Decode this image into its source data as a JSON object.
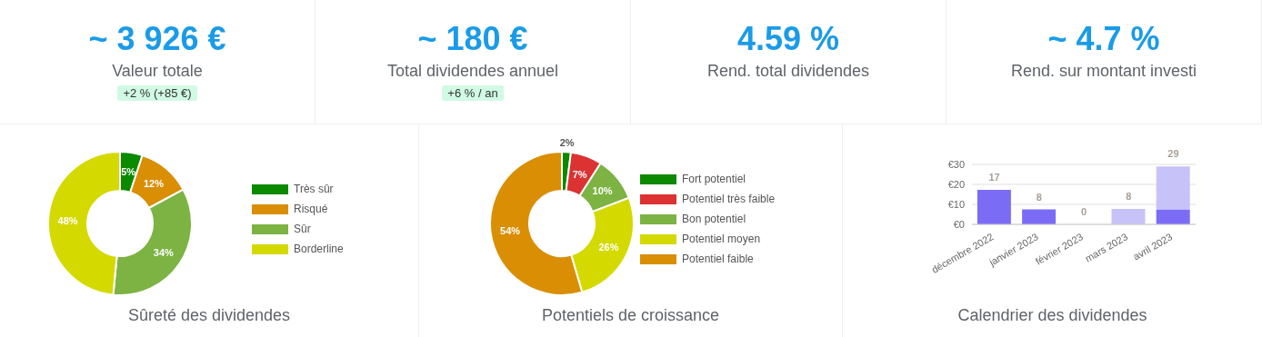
{
  "chart_data": [
    {
      "type": "other",
      "title": "~ 3 926 €",
      "subtitle": "Valeur totale",
      "annotations": [
        "+2 % (+85 €)"
      ]
    },
    {
      "type": "other",
      "title": "~ 180 €",
      "subtitle": "Total dividendes annuel",
      "annotations": [
        "+6 % / an"
      ]
    },
    {
      "type": "other",
      "title": "4.59 %",
      "subtitle": "Rend. total dividendes"
    },
    {
      "type": "other",
      "title": "~ 4.7 %",
      "subtitle": "Rend. sur montant investi"
    },
    {
      "type": "donut",
      "title": "Sûreté des dividendes",
      "categories": [
        "Très sûr",
        "Risqué",
        "Sûr",
        "Borderline"
      ],
      "values": [
        5,
        12,
        34,
        48
      ],
      "value_labels": [
        "5%",
        "12%",
        "34%",
        "48%"
      ],
      "colors": [
        "#0b8a00",
        "#d98e04",
        "#7cb342",
        "#d4d900"
      ],
      "legend": "right"
    },
    {
      "type": "donut",
      "title": "Potentiels de croissance",
      "categories": [
        "Fort potentiel",
        "Potentiel très faible",
        "Bon potentiel",
        "Potentiel moyen",
        "Potentiel faible"
      ],
      "values": [
        2,
        7,
        10,
        26,
        54
      ],
      "value_labels": [
        "2%",
        "7%",
        "10%",
        "26%",
        "54%"
      ],
      "colors": [
        "#0b8a00",
        "#dc3232",
        "#7cb342",
        "#d4d900",
        "#d98e04"
      ],
      "legend": "right"
    },
    {
      "type": "bar",
      "title": "Calendrier des dividendes",
      "categories": [
        "décembre 2022",
        "janvier 2023",
        "février 2023",
        "mars 2023",
        "avril 2023"
      ],
      "stacked": true,
      "series": [
        {
          "color": "#7b6cf6",
          "values": [
            17.3,
            7.5,
            0,
            0,
            7.5
          ]
        },
        {
          "color": "#c7c3f8",
          "values": [
            0,
            0,
            0,
            7.7,
            21.5
          ]
        }
      ],
      "totals": [
        "17",
        "8",
        "0",
        "8",
        "29"
      ],
      "ylim": [
        0,
        30
      ],
      "yticks": [
        {
          "value": 0,
          "label": "€0"
        },
        {
          "value": 10,
          "label": "€10"
        },
        {
          "value": 20,
          "label": "€20"
        },
        {
          "value": 30,
          "label": "€30"
        }
      ],
      "grid": "y"
    }
  ]
}
